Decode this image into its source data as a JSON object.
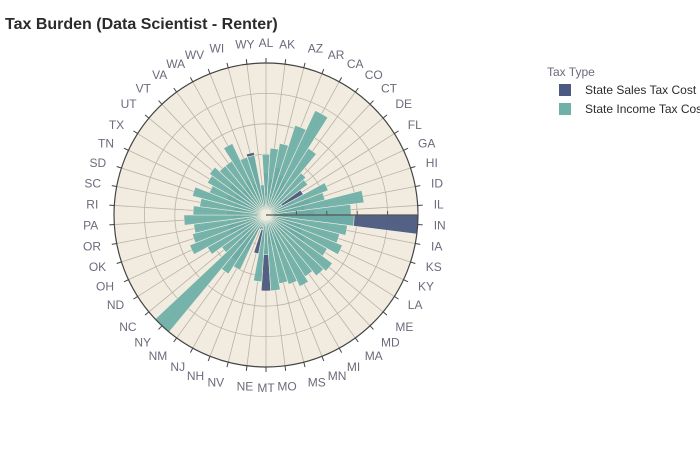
{
  "chart_data": {
    "type": "barpolar",
    "title": "Tax Burden (Data Scientist - Renter)",
    "legend": {
      "title": "Tax Type",
      "placement": "top-right"
    },
    "angular_direction": "clockwise",
    "angular_start": "top",
    "radial_range": [
      0,
      100
    ],
    "categories": [
      "AL",
      "AK",
      "AZ",
      "AR",
      "CA",
      "CO",
      "CT",
      "DE",
      "FL",
      "GA",
      "HI",
      "ID",
      "IL",
      "IN",
      "IA",
      "KS",
      "KY",
      "LA",
      "ME",
      "MD",
      "MA",
      "MI",
      "MN",
      "MS",
      "MO",
      "MT",
      "NE",
      "NV",
      "NH",
      "NJ",
      "NM",
      "NY",
      "NC",
      "ND",
      "OH",
      "OK",
      "OR",
      "PA",
      "RI",
      "SC",
      "SD",
      "TN",
      "TX",
      "UT",
      "VT",
      "VA",
      "WA",
      "WV",
      "WI",
      "WY"
    ],
    "series": [
      {
        "name": "State Sales Tax Cost",
        "color": "#4a5a80",
        "values": [
          28,
          24,
          32,
          28,
          26,
          20,
          16,
          18,
          28,
          20,
          30,
          26,
          32,
          100,
          18,
          24,
          26,
          30,
          18,
          18,
          16,
          18,
          26,
          20,
          20,
          50,
          18,
          26,
          10,
          26,
          36,
          26,
          20,
          22,
          26,
          26,
          14,
          22,
          26,
          22,
          22,
          28,
          24,
          30,
          22,
          22,
          26,
          22,
          42,
          18
        ]
      },
      {
        "name": "State Income Tax Cost",
        "color": "#6fb0a8",
        "values": [
          40,
          44,
          48,
          62,
          76,
          52,
          36,
          34,
          12,
          44,
          40,
          65,
          56,
          58,
          54,
          50,
          54,
          46,
          54,
          52,
          48,
          52,
          48,
          46,
          50,
          26,
          44,
          10,
          8,
          40,
          46,
          104,
          36,
          44,
          54,
          50,
          48,
          54,
          48,
          44,
          50,
          40,
          44,
          46,
          42,
          42,
          52,
          40,
          40,
          20
        ]
      }
    ]
  }
}
